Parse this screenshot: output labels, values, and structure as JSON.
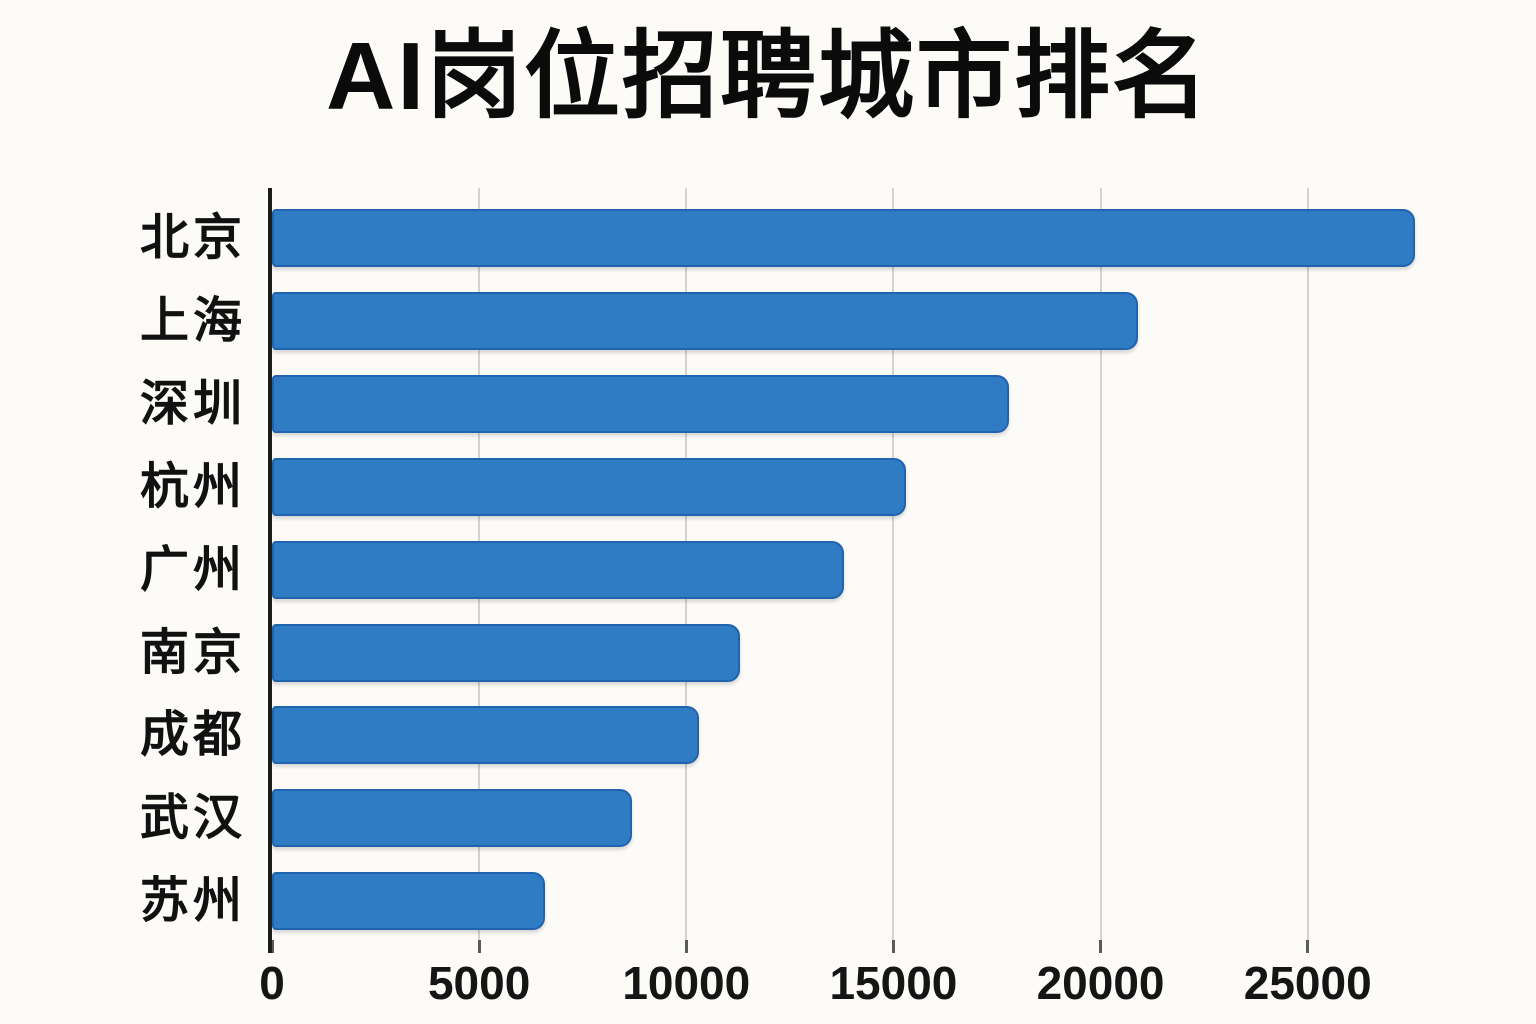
{
  "chart": {
    "title": "AI岗位招聘城市排名",
    "colors": {
      "background": "#fcfbf8",
      "bar_fill": "#2f7cc5",
      "bar_stroke": "#2063ae",
      "gridline": "#d4d2ce",
      "axis": "#1c1c1c",
      "tick": "#5a5a5a",
      "text": "#111111"
    }
  },
  "chart_data": {
    "type": "bar",
    "orientation": "horizontal",
    "title": "AI岗位招聘城市排名",
    "categories": [
      "北京",
      "上海",
      "深圳",
      "杭州",
      "广州",
      "南京",
      "成都",
      "武汉",
      "苏州"
    ],
    "values": [
      27500,
      20800,
      17700,
      15200,
      13700,
      11200,
      10200,
      8600,
      6500
    ],
    "x_ticks": [
      0,
      5000,
      10000,
      15000,
      20000,
      25000
    ],
    "x_tick_labels": [
      "0",
      "5000",
      "10000",
      "15000",
      "20000",
      "25000"
    ],
    "xlim": [
      0,
      28000
    ],
    "xlabel": "",
    "ylabel": "",
    "grid": true,
    "legend": false
  }
}
